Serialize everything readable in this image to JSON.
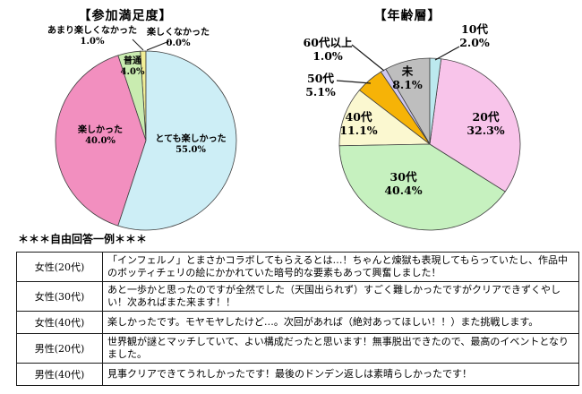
{
  "chart_data": [
    {
      "type": "pie",
      "title": "【参加満足度】",
      "labels": [
        "とても楽しかった",
        "楽しかった",
        "普通",
        "あまり楽しくなかった",
        "楽しくなかった"
      ],
      "values": [
        55.0,
        40.0,
        4.0,
        1.0,
        0.0
      ],
      "value_labels": [
        "55.0%",
        "40.0%",
        "4.0%",
        "1.0%",
        "0.0%"
      ],
      "colors": [
        "#cdeef6",
        "#f28fbf",
        "#c9ecb0",
        "#f1ee96",
        "#f1ee96"
      ],
      "start_angle_deg": 0,
      "direction": "clockwise",
      "legend": "none"
    },
    {
      "type": "pie",
      "title": "【年齢層】",
      "labels": [
        "10代",
        "20代",
        "30代",
        "40代",
        "50代",
        "60代以上",
        "未"
      ],
      "values": [
        2.0,
        32.3,
        40.4,
        11.1,
        5.1,
        1.0,
        8.1
      ],
      "value_labels": [
        "2.0%",
        "32.3%",
        "40.4%",
        "11.1%",
        "5.1%",
        "1.0%",
        "8.1%"
      ],
      "colors": [
        "#bce9ef",
        "#f8c4ea",
        "#c6f1bf",
        "#fbf8d0",
        "#f6b307",
        "#cfc7ef",
        "#bebebe"
      ],
      "start_angle_deg": 0,
      "direction": "clockwise",
      "legend": "none"
    }
  ],
  "free_responses": {
    "heading": "＊＊＊自由回答一例＊＊＊",
    "rows": [
      {
        "who": "女性(20代)",
        "comment": "「インフェルノ」とまさかコラボしてもらえるとは…！ちゃんと煉獄も表現してもらっていたし、作品中のボッティチェリの絵にかかれていた暗号的な要素もあって興奮しました！"
      },
      {
        "who": "女性(30代)",
        "comment": "あと一歩かと思ったのですが全然でした（天国出られず）すごく難しかったですがクリアできずくやしい！次あればまた来ます！！"
      },
      {
        "who": "女性(40代)",
        "comment": "楽しかったです。モヤモヤしたけど…。次回があれば（絶対あってほしい！！）また挑戦します。"
      },
      {
        "who": "男性(20代)",
        "comment": "世界観が謎とマッチしていて、よい構成だったと思います！無事脱出できたので、最高のイベントとなりました。"
      },
      {
        "who": "男性(40代)",
        "comment": "見事クリアできてうれしかったです！最後のドンデン返しは素晴らしかったです！"
      }
    ]
  }
}
